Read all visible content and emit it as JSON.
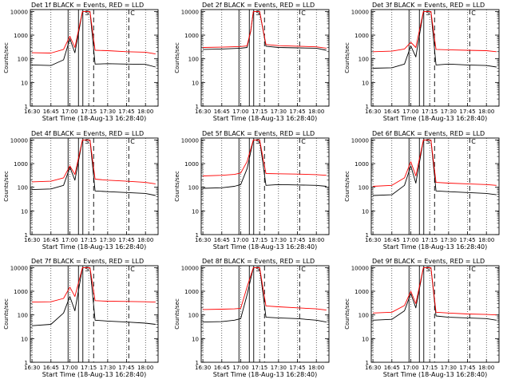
{
  "figure": {
    "y_axis_label": "Counts/sec",
    "x_axis_label": "Start Time (18-Aug-13 16:28:40)",
    "x_tick_labels": [
      "16:30",
      "16:45",
      "17:00",
      "17:15",
      "17:30",
      "17:45",
      "18:00"
    ],
    "y_tick_labels": [
      "1",
      "10",
      "100",
      "1000",
      "10000"
    ],
    "colors": {
      "events": "#000000",
      "lld": "#ff0000"
    }
  },
  "chart_data": [
    {
      "type": "line",
      "title": "Det 1f BLACK = Events, RED = LLD",
      "xlabel": "Start Time (18-Aug-13 16:28:40)",
      "ylabel": "Counts/sec",
      "xlim": [
        "16:28:40",
        "18:10"
      ],
      "ylim": [
        1,
        10000
      ],
      "yscale": "log",
      "markers": {
        "s": "S",
        "c": "C"
      },
      "series": [
        {
          "name": "Events",
          "color": "#000000",
          "x": [
            "16:30",
            "16:45",
            "16:55",
            "17:00",
            "17:04",
            "17:10",
            "17:16",
            "17:20",
            "17:30",
            "17:45",
            "18:00",
            "18:08"
          ],
          "y": [
            55,
            52,
            90,
            700,
            180,
            10000,
            10000,
            60,
            62,
            60,
            58,
            45
          ]
        },
        {
          "name": "LLD",
          "color": "#ff0000",
          "x": [
            "16:30",
            "16:45",
            "16:55",
            "17:00",
            "17:04",
            "17:10",
            "17:16",
            "17:20",
            "17:30",
            "17:45",
            "18:00",
            "18:08"
          ],
          "y": [
            180,
            175,
            250,
            900,
            300,
            10000,
            10000,
            230,
            220,
            200,
            190,
            160
          ]
        }
      ]
    },
    {
      "type": "line",
      "title": "Det 2f BLACK = Events, RED = LLD",
      "xlabel": "Start Time (18-Aug-13 16:28:40)",
      "ylabel": "Counts/sec",
      "xlim": [
        "16:28:40",
        "18:10"
      ],
      "ylim": [
        1,
        10000
      ],
      "yscale": "log",
      "markers": {
        "s": "S",
        "c": "C"
      },
      "series": [
        {
          "name": "Events",
          "color": "#000000",
          "x": [
            "16:30",
            "16:45",
            "17:00",
            "17:05",
            "17:08",
            "17:10",
            "17:15",
            "17:20",
            "17:30",
            "17:45",
            "18:00",
            "18:08"
          ],
          "y": [
            250,
            260,
            280,
            300,
            1500,
            10000,
            10000,
            340,
            300,
            290,
            280,
            230
          ]
        },
        {
          "name": "LLD",
          "color": "#ff0000",
          "x": [
            "16:30",
            "16:45",
            "17:00",
            "17:05",
            "17:08",
            "17:10",
            "17:15",
            "17:20",
            "17:30",
            "17:45",
            "18:00",
            "18:08"
          ],
          "y": [
            300,
            310,
            330,
            350,
            1600,
            10000,
            10000,
            400,
            360,
            340,
            320,
            280
          ]
        }
      ]
    },
    {
      "type": "line",
      "title": "Det 3f BLACK = Events, RED = LLD",
      "xlabel": "Start Time (18-Aug-13 16:28:40)",
      "ylabel": "Counts/sec",
      "xlim": [
        "16:28:40",
        "18:10"
      ],
      "ylim": [
        1,
        10000
      ],
      "yscale": "log",
      "markers": {
        "s": "S",
        "c": "C"
      },
      "series": [
        {
          "name": "Events",
          "color": "#000000",
          "x": [
            "16:30",
            "16:45",
            "16:55",
            "17:00",
            "17:04",
            "17:10",
            "17:16",
            "17:20",
            "17:30",
            "17:45",
            "18:00",
            "18:08"
          ],
          "y": [
            40,
            42,
            60,
            350,
            120,
            10000,
            10000,
            55,
            60,
            55,
            52,
            45
          ]
        },
        {
          "name": "LLD",
          "color": "#ff0000",
          "x": [
            "16:30",
            "16:45",
            "16:55",
            "17:00",
            "17:04",
            "17:10",
            "17:16",
            "17:20",
            "17:30",
            "17:45",
            "18:00",
            "18:08"
          ],
          "y": [
            200,
            210,
            260,
            500,
            300,
            10000,
            10000,
            250,
            240,
            230,
            220,
            200
          ]
        }
      ]
    },
    {
      "type": "line",
      "title": "Det 4f BLACK = Events, RED = LLD",
      "xlabel": "Start Time (18-Aug-13 16:28:40)",
      "ylabel": "Counts/sec",
      "xlim": [
        "16:28:40",
        "18:10"
      ],
      "ylim": [
        1,
        10000
      ],
      "yscale": "log",
      "markers": {
        "s": "S",
        "c": "C"
      },
      "series": [
        {
          "name": "Events",
          "color": "#000000",
          "x": [
            "16:30",
            "16:45",
            "16:55",
            "17:00",
            "17:04",
            "17:10",
            "17:16",
            "17:20",
            "17:30",
            "17:45",
            "18:00",
            "18:08"
          ],
          "y": [
            80,
            85,
            120,
            700,
            200,
            10000,
            10000,
            70,
            65,
            60,
            55,
            45
          ]
        },
        {
          "name": "LLD",
          "color": "#ff0000",
          "x": [
            "16:30",
            "16:45",
            "16:55",
            "17:00",
            "17:04",
            "17:10",
            "17:16",
            "17:20",
            "17:30",
            "17:45",
            "18:00",
            "18:08"
          ],
          "y": [
            170,
            180,
            250,
            800,
            350,
            10000,
            10000,
            220,
            200,
            180,
            160,
            140
          ]
        }
      ]
    },
    {
      "type": "line",
      "title": "Det 5f BLACK = Events, RED = LLD",
      "xlabel": "Start Time (18-Aug-13 16:28:40)",
      "ylabel": "Counts/sec",
      "xlim": [
        "16:28:40",
        "18:10"
      ],
      "ylim": [
        1,
        10000
      ],
      "yscale": "log",
      "markers": {
        "s": "S",
        "c": "C"
      },
      "series": [
        {
          "name": "Events",
          "color": "#000000",
          "x": [
            "16:30",
            "16:45",
            "16:55",
            "17:00",
            "17:05",
            "17:10",
            "17:15",
            "17:20",
            "17:30",
            "17:45",
            "18:00",
            "18:08"
          ],
          "y": [
            90,
            95,
            110,
            130,
            600,
            10000,
            10000,
            120,
            130,
            125,
            120,
            110
          ]
        },
        {
          "name": "LLD",
          "color": "#ff0000",
          "x": [
            "16:30",
            "16:45",
            "16:55",
            "17:00",
            "17:05",
            "17:10",
            "17:15",
            "17:20",
            "17:30",
            "17:45",
            "18:00",
            "18:08"
          ],
          "y": [
            300,
            320,
            350,
            400,
            1200,
            10000,
            10000,
            380,
            370,
            360,
            340,
            320
          ]
        }
      ]
    },
    {
      "type": "line",
      "title": "Det 6f BLACK = Events, RED = LLD",
      "xlabel": "Start Time (18-Aug-13 16:28:40)",
      "ylabel": "Counts/sec",
      "xlim": [
        "16:28:40",
        "18:10"
      ],
      "ylim": [
        1,
        10000
      ],
      "yscale": "log",
      "markers": {
        "s": "S",
        "c": "C"
      },
      "series": [
        {
          "name": "Events",
          "color": "#000000",
          "x": [
            "16:30",
            "16:45",
            "16:55",
            "17:00",
            "17:04",
            "17:10",
            "17:16",
            "17:20",
            "17:30",
            "17:45",
            "18:00",
            "18:08"
          ],
          "y": [
            45,
            48,
            120,
            800,
            150,
            10000,
            10000,
            70,
            65,
            60,
            55,
            48
          ]
        },
        {
          "name": "LLD",
          "color": "#ff0000",
          "x": [
            "16:30",
            "16:45",
            "16:55",
            "17:00",
            "17:04",
            "17:10",
            "17:16",
            "17:20",
            "17:30",
            "17:45",
            "18:00",
            "18:08"
          ],
          "y": [
            110,
            120,
            250,
            1200,
            300,
            10000,
            10000,
            160,
            150,
            140,
            130,
            120
          ]
        }
      ]
    },
    {
      "type": "line",
      "title": "Det 7f BLACK = Events, RED = LLD",
      "xlabel": "Start Time (18-Aug-13 16:28:40)",
      "ylabel": "Counts/sec",
      "xlim": [
        "16:28:40",
        "18:10"
      ],
      "ylim": [
        1,
        10000
      ],
      "yscale": "log",
      "markers": {
        "s": "S",
        "c": "C"
      },
      "series": [
        {
          "name": "Events",
          "color": "#000000",
          "x": [
            "16:30",
            "16:45",
            "16:55",
            "17:00",
            "17:04",
            "17:10",
            "17:16",
            "17:20",
            "17:30",
            "17:45",
            "18:00",
            "18:08"
          ],
          "y": [
            35,
            40,
            120,
            600,
            150,
            10000,
            10000,
            60,
            55,
            50,
            45,
            40
          ]
        },
        {
          "name": "LLD",
          "color": "#ff0000",
          "x": [
            "16:30",
            "16:45",
            "16:55",
            "17:00",
            "17:04",
            "17:10",
            "17:16",
            "17:20",
            "17:30",
            "17:45",
            "18:00",
            "18:08"
          ],
          "y": [
            350,
            360,
            500,
            1500,
            600,
            10000,
            10000,
            400,
            380,
            370,
            360,
            350
          ]
        }
      ]
    },
    {
      "type": "line",
      "title": "Det 8f BLACK = Events, RED = LLD",
      "xlabel": "Start Time (18-Aug-13 16:28:40)",
      "ylabel": "Counts/sec",
      "xlim": [
        "16:28:40",
        "18:10"
      ],
      "ylim": [
        1,
        10000
      ],
      "yscale": "log",
      "markers": {
        "s": "S",
        "c": "C"
      },
      "series": [
        {
          "name": "Events",
          "color": "#000000",
          "x": [
            "16:30",
            "16:45",
            "16:55",
            "17:00",
            "17:05",
            "17:10",
            "17:15",
            "17:20",
            "17:30",
            "17:45",
            "18:00",
            "18:08"
          ],
          "y": [
            50,
            52,
            60,
            70,
            700,
            10000,
            10000,
            80,
            75,
            70,
            60,
            50
          ]
        },
        {
          "name": "LLD",
          "color": "#ff0000",
          "x": [
            "16:30",
            "16:45",
            "16:55",
            "17:00",
            "17:05",
            "17:10",
            "17:15",
            "17:20",
            "17:30",
            "17:45",
            "18:00",
            "18:08"
          ],
          "y": [
            170,
            175,
            180,
            190,
            1500,
            10000,
            10000,
            240,
            220,
            200,
            180,
            160
          ]
        }
      ]
    },
    {
      "type": "line",
      "title": "Det 9f BLACK = Events, RED = LLD",
      "xlabel": "Start Time (18-Aug-13 16:28:40)",
      "ylabel": "Counts/sec",
      "xlim": [
        "16:28:40",
        "18:10"
      ],
      "ylim": [
        1,
        10000
      ],
      "yscale": "log",
      "markers": {
        "s": "S",
        "c": "C"
      },
      "series": [
        {
          "name": "Events",
          "color": "#000000",
          "x": [
            "16:30",
            "16:45",
            "16:55",
            "17:00",
            "17:04",
            "17:10",
            "17:16",
            "17:20",
            "17:30",
            "17:45",
            "18:00",
            "18:08"
          ],
          "y": [
            60,
            65,
            150,
            800,
            200,
            10000,
            10000,
            90,
            80,
            75,
            70,
            60
          ]
        },
        {
          "name": "LLD",
          "color": "#ff0000",
          "x": [
            "16:30",
            "16:45",
            "16:55",
            "17:00",
            "17:04",
            "17:10",
            "17:16",
            "17:20",
            "17:30",
            "17:45",
            "18:00",
            "18:08"
          ],
          "y": [
            120,
            130,
            250,
            1000,
            300,
            10000,
            10000,
            130,
            120,
            110,
            105,
            100
          ]
        }
      ]
    }
  ]
}
